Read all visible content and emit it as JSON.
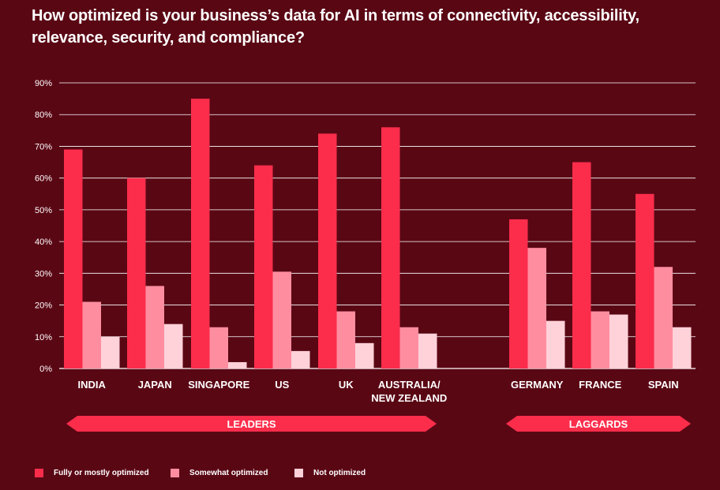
{
  "title": "How optimized is your business’s data for AI in terms of connectivity, accessibility, relevance, security, and compliance?",
  "colors": {
    "background": "#5a0714",
    "fully": "#fb2d4b",
    "somewhat": "#ff8da0",
    "not": "#ffd2da",
    "grid": "#ffffff",
    "group_banner": "#fb2d4b"
  },
  "chart_data": {
    "type": "bar",
    "title": "How optimized is your business’s data for AI in terms of connectivity, accessibility, relevance, security, and compliance?",
    "categories": [
      [
        "INDIA"
      ],
      [
        "JAPAN"
      ],
      [
        "SINGAPORE"
      ],
      [
        "US"
      ],
      [
        "UK"
      ],
      [
        "AUSTRALIA/",
        "NEW ZEALAND"
      ],
      [
        "GERMANY"
      ],
      [
        "FRANCE"
      ],
      [
        "SPAIN"
      ]
    ],
    "series": [
      {
        "name": "Fully or mostly optimized",
        "color": "#fb2d4b",
        "values": [
          69,
          60,
          85,
          64,
          74,
          76,
          47,
          65,
          55
        ]
      },
      {
        "name": "Somewhat optimized",
        "color": "#ff8da0",
        "values": [
          21,
          26,
          13,
          30.5,
          18,
          13,
          38,
          18,
          32
        ]
      },
      {
        "name": "Not optimized",
        "color": "#ffd2da",
        "values": [
          10,
          14,
          2,
          5.5,
          8,
          11,
          15,
          17,
          13
        ]
      }
    ],
    "ylim": [
      0,
      90
    ],
    "yticks": [
      "0%",
      "10%",
      "20%",
      "30%",
      "40%",
      "50%",
      "60%",
      "70%",
      "80%",
      "90%"
    ],
    "grid": true,
    "groups": [
      {
        "label": "LEADERS",
        "from": 0,
        "to": 5
      },
      {
        "label": "LAGGARDS",
        "from": 6,
        "to": 8
      }
    ],
    "legend_position": "bottom-left"
  }
}
